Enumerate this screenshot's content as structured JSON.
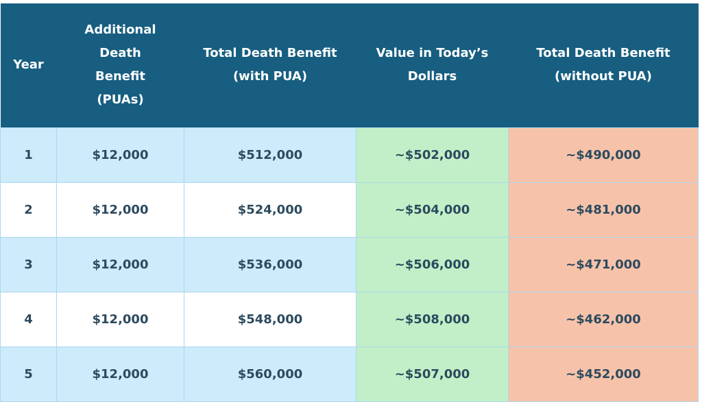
{
  "table": {
    "columns": [
      "Year",
      "Additional Death Benefit (PUAs)",
      "Total Death Benefit (with PUA)",
      "Value in Today’s Dollars",
      "Total Death Benefit (without PUA)"
    ],
    "rows": [
      [
        "1",
        "$12,000",
        "$512,000",
        "~$502,000",
        "~$490,000"
      ],
      [
        "2",
        "$12,000",
        "$524,000",
        "~$504,000",
        "~$481,000"
      ],
      [
        "3",
        "$12,000",
        "$536,000",
        "~$506,000",
        "~$471,000"
      ],
      [
        "4",
        "$12,000",
        "$548,000",
        "~$508,000",
        "~$462,000"
      ],
      [
        "5",
        "$12,000",
        "$560,000",
        "~$507,000",
        "~$452,000"
      ]
    ]
  }
}
